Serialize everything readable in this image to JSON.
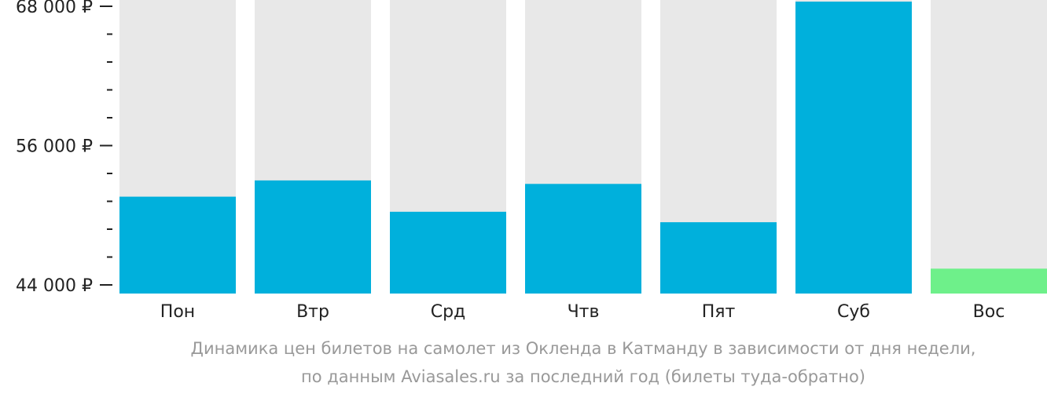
{
  "chart_data": {
    "type": "bar",
    "categories": [
      "Пон",
      "Втр",
      "Срд",
      "Чтв",
      "Пят",
      "Суб",
      "Вос"
    ],
    "values": [
      51600,
      53000,
      50300,
      52700,
      49400,
      68400,
      45400
    ],
    "ylim": [
      44000,
      69000
    ],
    "y_ticks": [
      {
        "value": 44000,
        "label": "44 000 ₽"
      },
      {
        "value": 56000,
        "label": "56 000 ₽"
      },
      {
        "value": 68000,
        "label": "68 000 ₽"
      }
    ],
    "minor_tick_step": 2400,
    "colors": {
      "bar": "#00b0dc",
      "bar_min": "#6ef08a",
      "background_bar": "#e8e8e8",
      "axis": "#222222"
    },
    "min_category": "Вос"
  },
  "caption": {
    "line1": "Динамика цен билетов на самолет из Окленда в Катманду в зависимости от дня недели,",
    "line2": "по данным Aviasales.ru за последний год (билеты туда-обратно)"
  }
}
